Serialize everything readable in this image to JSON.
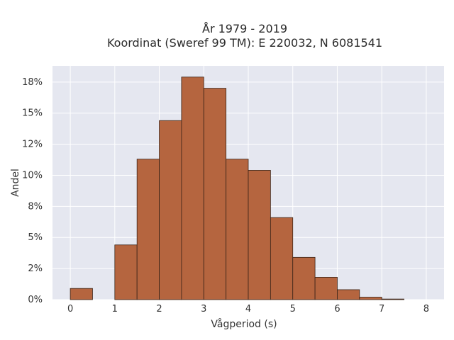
{
  "chart_data": {
    "type": "bar",
    "title_lines": [
      "År 1979 - 2019",
      "Koordinat (Sweref 99 TM): E 220032, N 6081541"
    ],
    "xlabel": "Vågperiod (s)",
    "ylabel": "Andel",
    "x_ticks": [
      "0",
      "1",
      "2",
      "3",
      "4",
      "5",
      "6",
      "7",
      "8"
    ],
    "y_ticks": [
      "0%",
      "2%",
      "5%",
      "8%",
      "10%",
      "12%",
      "15%",
      "18%"
    ],
    "y_tick_values": [
      0,
      2.5,
      5,
      7.5,
      10,
      12.5,
      15,
      17.5
    ],
    "xlim": [
      -0.4,
      8.4
    ],
    "ylim": [
      0,
      18.8
    ],
    "bin_width": 0.5,
    "bins": [
      {
        "x0": 0.0,
        "value": 0.9
      },
      {
        "x0": 1.0,
        "value": 4.4
      },
      {
        "x0": 1.5,
        "value": 11.3
      },
      {
        "x0": 2.0,
        "value": 14.4
      },
      {
        "x0": 2.5,
        "value": 17.9
      },
      {
        "x0": 3.0,
        "value": 17.0
      },
      {
        "x0": 3.5,
        "value": 11.3
      },
      {
        "x0": 4.0,
        "value": 10.4
      },
      {
        "x0": 4.5,
        "value": 6.6
      },
      {
        "x0": 5.0,
        "value": 3.4
      },
      {
        "x0": 5.5,
        "value": 1.8
      },
      {
        "x0": 6.0,
        "value": 0.8
      },
      {
        "x0": 6.5,
        "value": 0.2
      },
      {
        "x0": 7.0,
        "value": 0.05
      }
    ],
    "grid": true,
    "colors": {
      "bar_fill": "#b5653f",
      "bar_edge": "#3a2418",
      "plot_background": "#e5e7f0",
      "grid": "#ffffff"
    }
  }
}
